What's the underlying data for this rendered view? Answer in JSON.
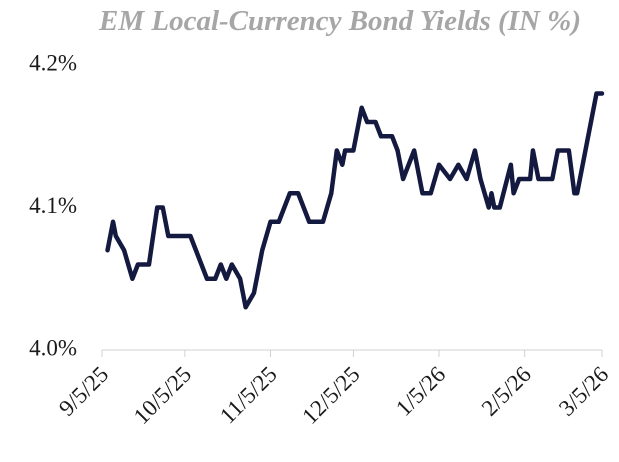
{
  "chart_data": {
    "type": "line",
    "title": "EM Local-Currency Bond Yields (IN %)",
    "x": [
      "9/7/25",
      "9/9/25",
      "9/10/25",
      "9/13/25",
      "9/16/25",
      "9/18/25",
      "9/22/25",
      "9/25/25",
      "9/27/25",
      "9/29/25",
      "10/7/25",
      "10/9/25",
      "10/13/25",
      "10/16/25",
      "10/18/25",
      "10/20/25",
      "10/22/25",
      "10/25/25",
      "10/27/25",
      "10/30/25",
      "11/2/25",
      "11/5/25",
      "11/8/25",
      "11/10/25",
      "11/12/25",
      "11/15/25",
      "11/17/25",
      "11/19/25",
      "11/24/25",
      "11/27/25",
      "11/29/25",
      "12/1/25",
      "12/2/25",
      "12/5/25",
      "12/8/25",
      "12/10/25",
      "12/13/25",
      "12/15/25",
      "12/19/25",
      "12/21/25",
      "12/23/25",
      "12/27/25",
      "12/30/25",
      "1/2/26",
      "1/5/26",
      "1/9/26",
      "1/12/26",
      "1/15/26",
      "1/18/26",
      "1/20/26",
      "1/23/26",
      "1/24/26",
      "1/25/26",
      "1/27/26",
      "1/31/26",
      "2/1/26",
      "2/3/26",
      "2/7/26",
      "2/8/26",
      "2/10/26",
      "2/15/26",
      "2/17/26",
      "2/21/26",
      "2/23/26",
      "2/24/26",
      "2/27/26",
      "3/3/26",
      "3/5/26"
    ],
    "series": [
      {
        "name": "EM Local-Currency Bond Yields",
        "color": "#14193f",
        "values": [
          4.07,
          4.09,
          4.08,
          4.07,
          4.05,
          4.06,
          4.06,
          4.1,
          4.1,
          4.08,
          4.08,
          4.07,
          4.05,
          4.05,
          4.06,
          4.05,
          4.06,
          4.05,
          4.03,
          4.04,
          4.07,
          4.09,
          4.09,
          4.1,
          4.11,
          4.11,
          4.1,
          4.09,
          4.09,
          4.11,
          4.14,
          4.13,
          4.14,
          4.14,
          4.17,
          4.16,
          4.16,
          4.15,
          4.15,
          4.14,
          4.12,
          4.14,
          4.11,
          4.11,
          4.13,
          4.12,
          4.13,
          4.12,
          4.14,
          4.12,
          4.1,
          4.11,
          4.1,
          4.1,
          4.13,
          4.11,
          4.12,
          4.12,
          4.14,
          4.12,
          4.12,
          4.14,
          4.14,
          4.11,
          4.11,
          4.14,
          4.18,
          4.18
        ]
      }
    ],
    "xlim": [
      "9/5/25",
      "3/5/26"
    ],
    "xticks": [
      "9/5/25",
      "10/5/25",
      "11/5/25",
      "12/5/25",
      "1/5/26",
      "2/5/26",
      "3/5/26"
    ],
    "ylim": [
      4.0,
      4.2
    ],
    "yticks": [
      {
        "value": 4.0,
        "label": "4.0%"
      },
      {
        "value": 4.1,
        "label": "4.1%"
      },
      {
        "value": 4.2,
        "label": "4.2%"
      }
    ],
    "grid": false
  }
}
